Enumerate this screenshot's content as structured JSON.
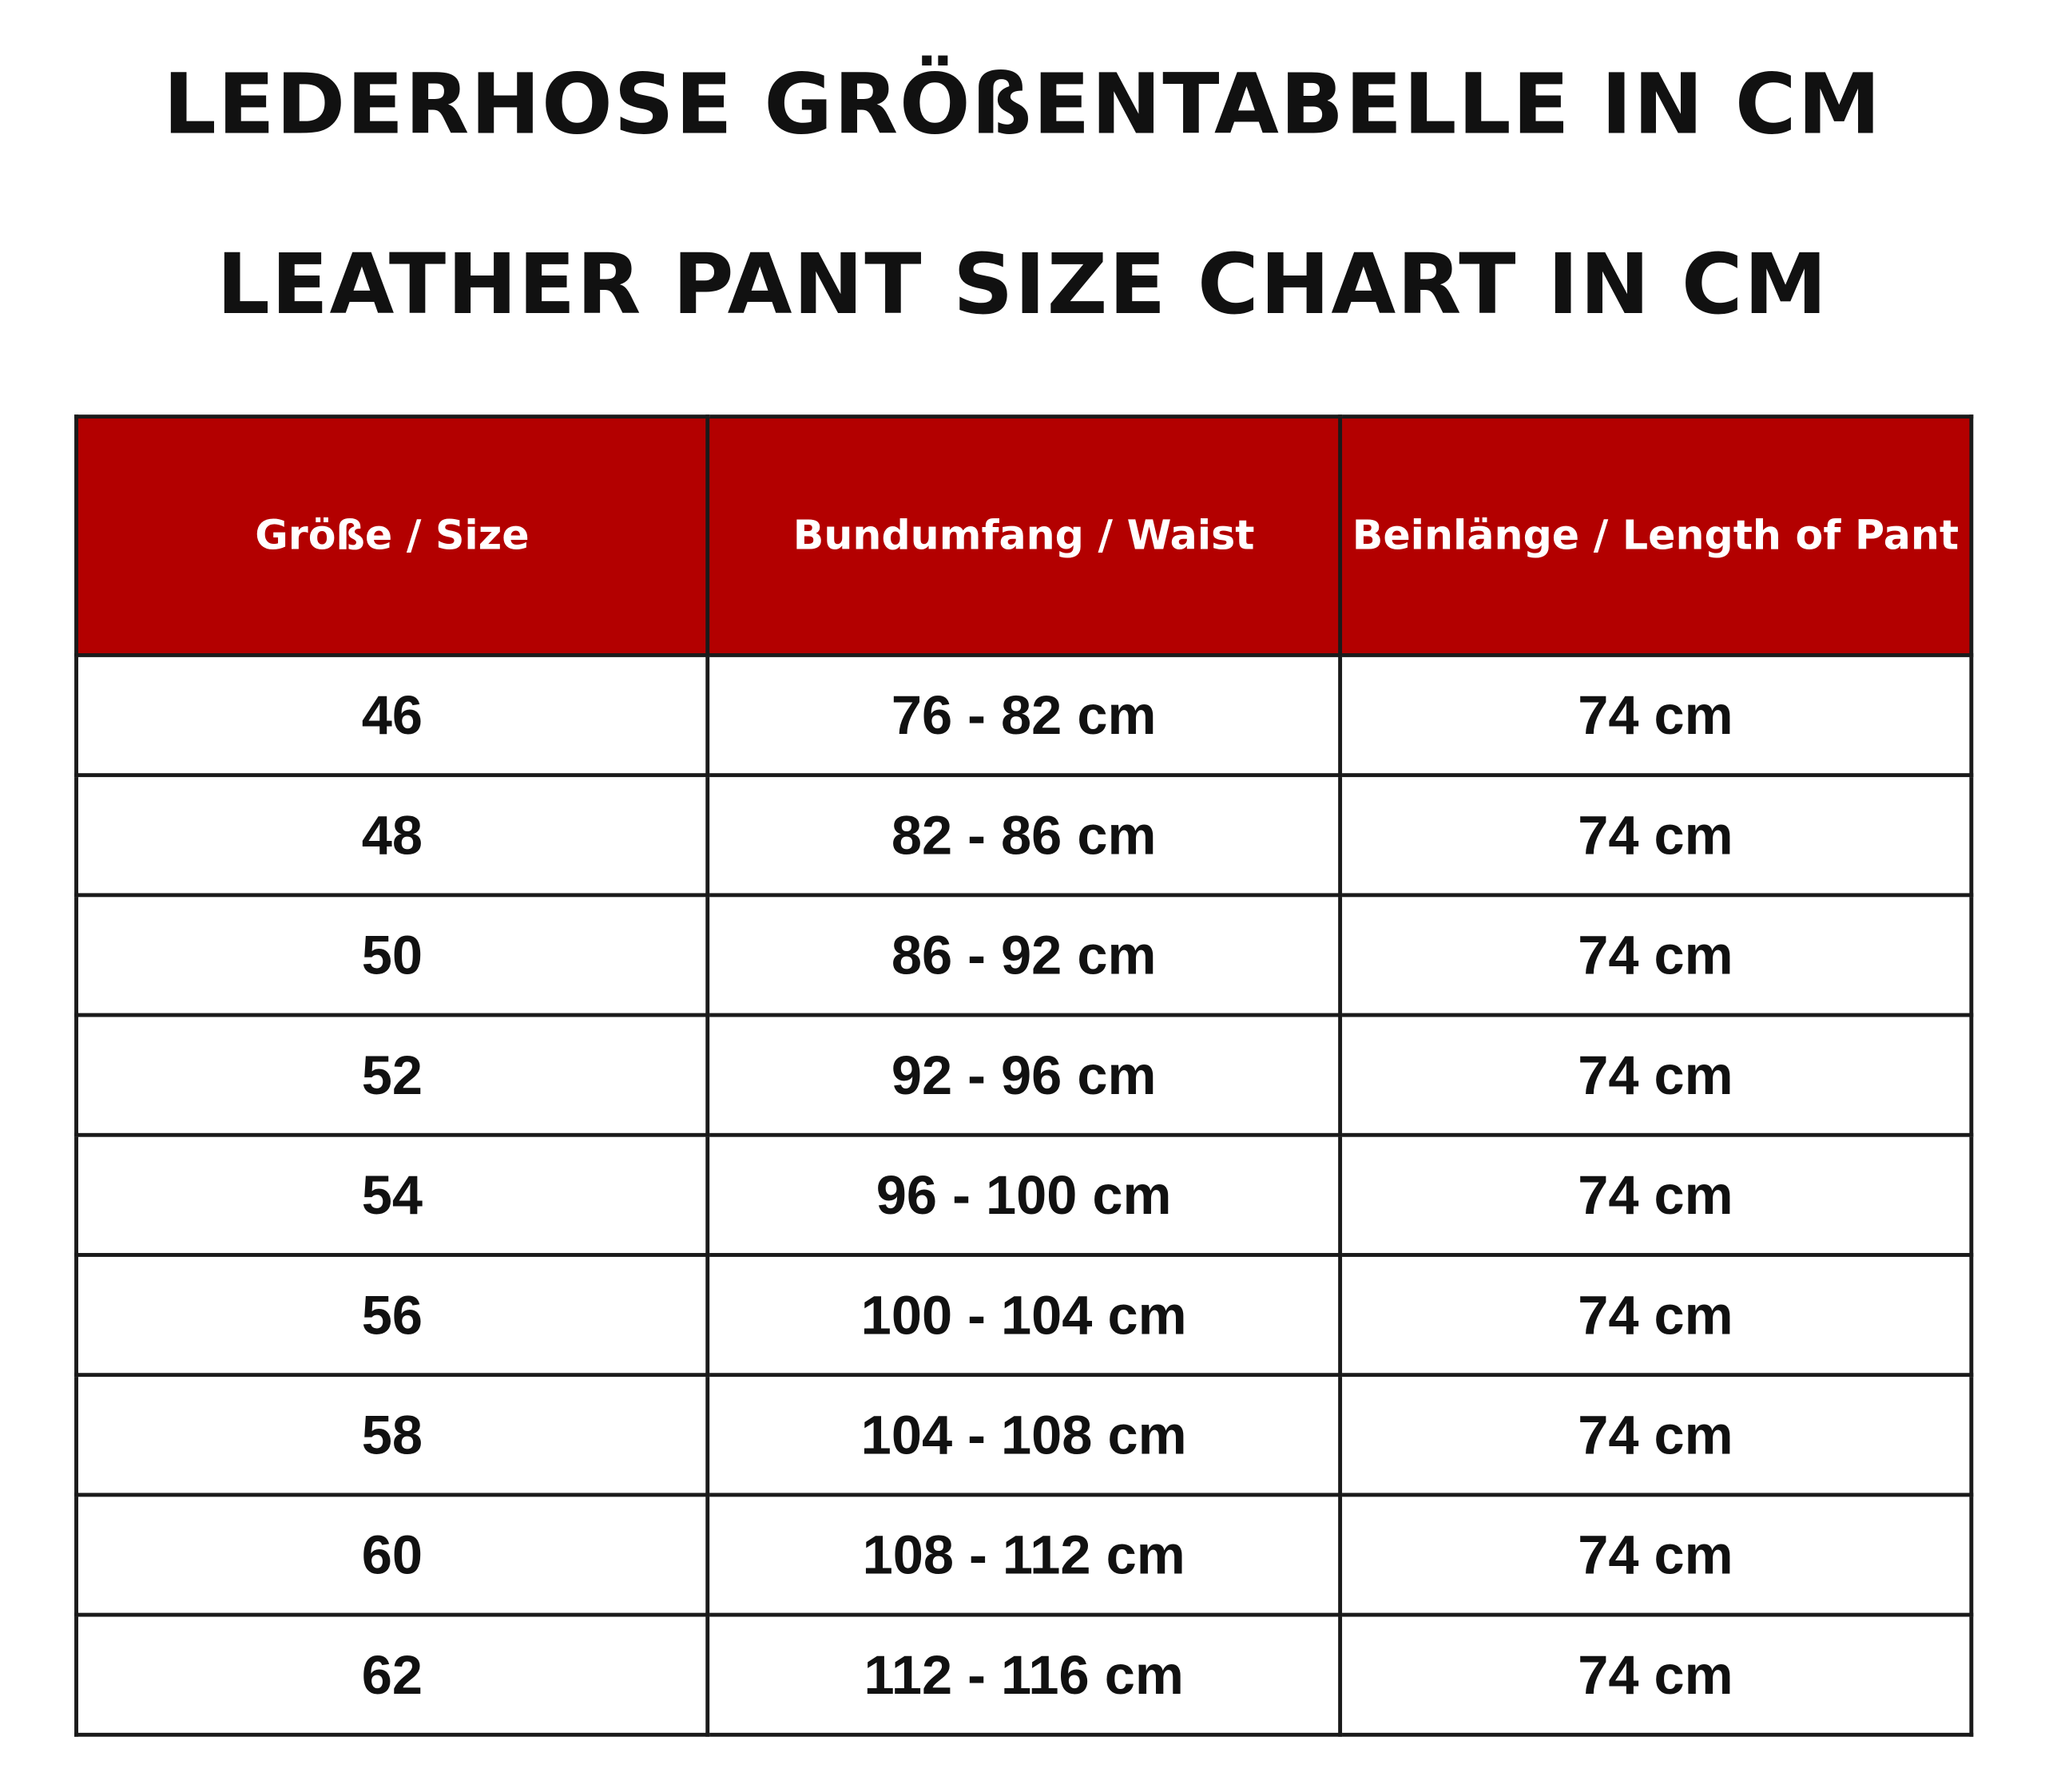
{
  "title_de": "LEDERHOSE GRÖßENTABELLE IN CM",
  "title_en": "LEATHER PANT SIZE CHART IN CM",
  "header_color": "#b30000",
  "columns": [
    "Größe / Size",
    "Bundumfang / Waist",
    "Beinlänge / Length of Pant"
  ],
  "rows": [
    [
      "46",
      "76 - 82 cm",
      "74 cm"
    ],
    [
      "48",
      "82 - 86 cm",
      "74 cm"
    ],
    [
      "50",
      "86 - 92 cm",
      "74 cm"
    ],
    [
      "52",
      "92 - 96 cm",
      "74 cm"
    ],
    [
      "54",
      "96 - 100 cm",
      "74 cm"
    ],
    [
      "56",
      "100 - 104 cm",
      "74 cm"
    ],
    [
      "58",
      "104 - 108 cm",
      "74 cm"
    ],
    [
      "60",
      "108 - 112 cm",
      "74 cm"
    ],
    [
      "62",
      "112 - 116 cm",
      "74 cm"
    ]
  ]
}
